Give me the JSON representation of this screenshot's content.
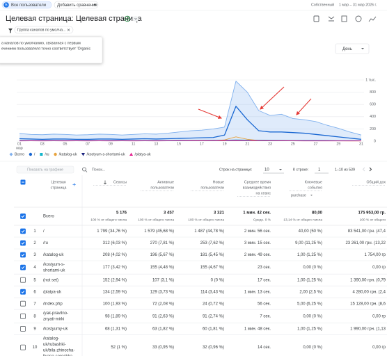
{
  "topbar": {
    "segment_badge": "Б",
    "segment": "Все пользователи",
    "add_comparison": "Добавить сравнение",
    "date_range_label": "Собственный",
    "date_range": "1 мар – 31 мар 2026 г."
  },
  "header": {
    "title": "Целевая страница: Целевая страница",
    "filter_chip": "Группа каналов по умолча..."
  },
  "filter_tooltip": {
    "lines": [
      "а каналов по умолчанию, связанная с первым",
      "ечением пользователя точно соответствует 'Organic"
    ]
  },
  "chart_controls": {
    "granularity": "День"
  },
  "chart_data": {
    "type": "line",
    "categories": [
      "01",
      null,
      "03",
      null,
      "05",
      null,
      "07",
      null,
      "09",
      null,
      "11",
      null,
      "13",
      null,
      "15",
      null,
      "17",
      null,
      "19",
      null,
      "21",
      null,
      "23",
      null,
      "25",
      null,
      "27",
      null,
      "29",
      null,
      "31"
    ],
    "x_period_label": "мар",
    "ylim": [
      0,
      1000
    ],
    "yticks": [
      0,
      200,
      400,
      600,
      800,
      {
        "value": 1000,
        "label": "1 тыс."
      }
    ],
    "grid": true,
    "series": [
      {
        "name": "Всего",
        "color": "#7fb0ee",
        "area": true,
        "marker": "diamond",
        "values": [
          125,
          110,
          105,
          115,
          110,
          100,
          105,
          115,
          110,
          100,
          110,
          120,
          115,
          130,
          150,
          170,
          180,
          200,
          230,
          980,
          800,
          500,
          420,
          440,
          370,
          350,
          320,
          260,
          210,
          150,
          100
        ]
      },
      {
        "name": "/",
        "color": "#1967d2",
        "marker": "circle",
        "values": [
          40,
          35,
          30,
          35,
          35,
          30,
          30,
          35,
          35,
          30,
          35,
          40,
          35,
          40,
          45,
          50,
          55,
          60,
          100,
          570,
          350,
          170,
          150,
          150,
          140,
          130,
          110,
          90,
          70,
          50,
          30
        ]
      },
      {
        "name": "/ru",
        "color": "#12b5cb",
        "marker": "square",
        "values": [
          10,
          8,
          9,
          10,
          8,
          9,
          10,
          8,
          9,
          10,
          8,
          10,
          9,
          10,
          12,
          11,
          12,
          14,
          15,
          20,
          18,
          15,
          14,
          12,
          11,
          10,
          10,
          9,
          8,
          8,
          6
        ]
      },
      {
        "name": "/katalog-uk",
        "color": "#e8a33d",
        "marker": "circle",
        "values": [
          5,
          5,
          6,
          5,
          5,
          6,
          5,
          5,
          6,
          5,
          5,
          6,
          5,
          6,
          6,
          7,
          7,
          8,
          20,
          70,
          30,
          10,
          8,
          8,
          7,
          6,
          6,
          5,
          5,
          4,
          3
        ]
      },
      {
        "name": "/kostyum-s-shortami-uk",
        "color": "#1a237e",
        "marker": "triangle-down",
        "values": [
          8,
          7,
          8,
          7,
          8,
          7,
          8,
          7,
          8,
          7,
          8,
          7,
          8,
          8,
          9,
          9,
          10,
          10,
          12,
          15,
          12,
          10,
          9,
          9,
          8,
          8,
          7,
          7,
          6,
          6,
          5
        ]
      },
      {
        "name": "/platya-uk",
        "color": "#e52592",
        "marker": "triangle",
        "values": [
          4,
          5,
          4,
          5,
          4,
          5,
          4,
          5,
          4,
          5,
          4,
          5,
          4,
          5,
          5,
          5,
          6,
          6,
          7,
          10,
          8,
          6,
          5,
          5,
          5,
          4,
          4,
          4,
          3,
          3,
          3
        ]
      }
    ]
  },
  "table_toolbar": {
    "plot_button": "Показать на графике",
    "search_placeholder": "Поиск...",
    "rows_per_page_label": "Строк на странице:",
    "rows_per_page": "10",
    "go_to_label": "К строке:",
    "go_to": "1",
    "pagination": "1–10 из 539"
  },
  "table": {
    "columns": [
      [
        "Целевая",
        "страница"
      ],
      [
        "Сеансы"
      ],
      [
        "Активные",
        "пользователи"
      ],
      [
        "Новые",
        "пользователи"
      ],
      [
        "Среднее время",
        "взаимодействия",
        "на сеанс"
      ],
      [
        "Ключевые",
        "события"
      ],
      [
        "Общий дох"
      ]
    ],
    "key_event": "purchase",
    "total": {
      "label": "Всего",
      "checked": true,
      "cells": [
        [
          "5 176",
          "100 % от общего числа"
        ],
        [
          "3 457",
          "100 % от общего числа"
        ],
        [
          "3 321",
          "100 % от общего числа"
        ],
        [
          "1 мин. 42 сек.",
          "Средн. 0 %"
        ],
        [
          "80,00",
          "13,14 % от общего числа"
        ],
        [
          "175 953,00 гр.",
          "100 % от общего"
        ]
      ]
    },
    "rows": [
      {
        "index": "1",
        "checked": true,
        "page": [
          "/"
        ],
        "cells": [
          "1 799 (34,76 %)",
          "1 579 (45,68 %)",
          "1 487 (44,78 %)",
          "2 мин. 56 сек.",
          "40,00 (50 %)",
          "83 541,00 грн. (47,4"
        ]
      },
      {
        "index": "2",
        "checked": true,
        "page": [
          "/ru"
        ],
        "cells": [
          "312 (6,03 %)",
          "270 (7,81 %)",
          "253 (7,62 %)",
          "3 мин. 15 сек.",
          "9,00 (11,25 %)",
          "23 261,00 грн. (13,22"
        ]
      },
      {
        "index": "3",
        "checked": true,
        "page": [
          "/katalog-uk"
        ],
        "cells": [
          "208 (4,02 %)",
          "196 (5,67 %)",
          "181 (5,45 %)",
          "2 мин. 49 сек.",
          "1,00 (1,25 %)",
          "1 754,00 гр"
        ]
      },
      {
        "index": "4",
        "checked": true,
        "page": [
          "/kostyum-s-",
          "shortami-uk"
        ],
        "cells": [
          "177 (3,42 %)",
          "155 (4,48 %)",
          "155 (4,67 %)",
          "23 сек.",
          "0,00 (0 %)",
          "0,00 гр"
        ]
      },
      {
        "index": "5",
        "checked": false,
        "page": [
          "(not set)"
        ],
        "cells": [
          "152 (2,94 %)",
          "107 (3,1 %)",
          "0 (0 %)",
          "17 сек.",
          "1,00 (1,25 %)",
          "1 390,00 грн. (0,79"
        ]
      },
      {
        "index": "6",
        "checked": true,
        "page": [
          "/platya-uk"
        ],
        "cells": [
          "134 (2,59 %)",
          "129 (3,73 %)",
          "114 (3,43 %)",
          "1 мин. 13 сек.",
          "2,00 (2,5 %)",
          "4 280,00 грн. (2,4"
        ]
      },
      {
        "index": "7",
        "checked": false,
        "page": [
          "/index.php"
        ],
        "cells": [
          "100 (1,93 %)",
          "72 (2,08 %)",
          "24 (0,72 %)",
          "56 сек.",
          "5,00 (6,25 %)",
          "15 128,00 грн. (8,6"
        ]
      },
      {
        "index": "8",
        "checked": false,
        "page": [
          "/yak-pravilno-",
          "znyati-mirki"
        ],
        "cells": [
          "98 (1,89 %)",
          "91 (2,63 %)",
          "91 (2,74 %)",
          "7 сек.",
          "0,00 (0 %)",
          "0,00 гр"
        ]
      },
      {
        "index": "9",
        "checked": false,
        "page": [
          "/kostyumy-uk"
        ],
        "cells": [
          "68 (1,31 %)",
          "63 (1,82 %)",
          "60 (1,81 %)",
          "1 мин. 48 сек.",
          "1,00 (1,25 %)",
          "1 990,00 грн. (1,13"
        ]
      },
      {
        "index": "10",
        "checked": false,
        "page": [
          "/katalog-",
          "uk/rubashki-",
          "uk/bila-zhinocha-",
          "llyana-sorochka-"
        ],
        "cells": [
          "52 (1 %)",
          "33 (0,95 %)",
          "32 (0,96 %)",
          "14 сек.",
          "0,00 (0 %)",
          "0,00 гр"
        ]
      }
    ]
  }
}
